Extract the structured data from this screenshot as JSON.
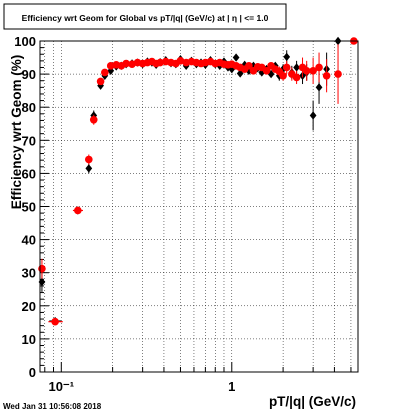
{
  "chart_data": {
    "type": "scatter",
    "title": "Efficiency wrt Geom for Global vs pT/|q| (GeV/c) at | η | <= 1.0",
    "xlabel": "pT/|q| (GeV/c)",
    "ylabel": "Efficiency wrt Geom (%)",
    "x_scale": "log",
    "xlim": [
      0.075,
      5.5
    ],
    "ylim": [
      0,
      100
    ],
    "x_major_ticks": [
      {
        "value": 0.1,
        "label": "10⁻¹"
      },
      {
        "value": 1,
        "label": "1"
      }
    ],
    "x_minor_ticks": [
      0.08,
      0.09,
      0.2,
      0.3,
      0.4,
      0.5,
      0.6,
      0.7,
      0.8,
      0.9,
      2,
      3,
      4,
      5
    ],
    "y_ticks": [
      0,
      10,
      20,
      30,
      40,
      50,
      60,
      70,
      80,
      90,
      100
    ],
    "grid": true,
    "colors": {
      "series_black": "#000000",
      "series_red": "#ff0000"
    },
    "series": [
      {
        "color": "#000000",
        "marker": "diamond",
        "points": [
          {
            "x": 0.077,
            "y": 27.2,
            "yerr": 3.0
          },
          {
            "x": 0.092,
            "y": 15.4,
            "yerr": 0.8,
            "xerr": [
              0.085,
              0.1
            ]
          },
          {
            "x": 0.125,
            "y": 48.8,
            "yerr": 0.8,
            "xerr": [
              0.12,
              0.13
            ]
          },
          {
            "x": 0.145,
            "y": 61.5,
            "yerr": 1.5
          },
          {
            "x": 0.155,
            "y": 77.5,
            "yerr": 1.5
          },
          {
            "x": 0.17,
            "y": 86.5,
            "yerr": 1.0
          },
          {
            "x": 0.18,
            "y": 89.5,
            "yerr": 1.0
          },
          {
            "x": 0.195,
            "y": 91.0
          },
          {
            "x": 0.21,
            "y": 92.3
          },
          {
            "x": 0.225,
            "y": 92.5
          },
          {
            "x": 0.24,
            "y": 93.0
          },
          {
            "x": 0.26,
            "y": 93.2
          },
          {
            "x": 0.28,
            "y": 93.5
          },
          {
            "x": 0.3,
            "y": 93.0
          },
          {
            "x": 0.32,
            "y": 93.8
          },
          {
            "x": 0.34,
            "y": 93.5
          },
          {
            "x": 0.36,
            "y": 92.8
          },
          {
            "x": 0.38,
            "y": 93.6
          },
          {
            "x": 0.41,
            "y": 94.2
          },
          {
            "x": 0.44,
            "y": 93.3
          },
          {
            "x": 0.47,
            "y": 93.0
          },
          {
            "x": 0.5,
            "y": 94.5
          },
          {
            "x": 0.54,
            "y": 92.5
          },
          {
            "x": 0.58,
            "y": 94.0
          },
          {
            "x": 0.62,
            "y": 93.0
          },
          {
            "x": 0.66,
            "y": 93.5
          },
          {
            "x": 0.7,
            "y": 92.8
          },
          {
            "x": 0.75,
            "y": 94.2
          },
          {
            "x": 0.8,
            "y": 93.0
          },
          {
            "x": 0.85,
            "y": 92.5
          },
          {
            "x": 0.9,
            "y": 93.8
          },
          {
            "x": 0.95,
            "y": 92.0
          },
          {
            "x": 1.0,
            "y": 91.5
          },
          {
            "x": 1.06,
            "y": 95.0
          },
          {
            "x": 1.12,
            "y": 90.2
          },
          {
            "x": 1.19,
            "y": 92.8
          },
          {
            "x": 1.26,
            "y": 91.0
          },
          {
            "x": 1.34,
            "y": 92.5
          },
          {
            "x": 1.42,
            "y": 91.8
          },
          {
            "x": 1.5,
            "y": 90.5
          },
          {
            "x": 1.6,
            "y": 91.5
          },
          {
            "x": 1.7,
            "y": 90.0
          },
          {
            "x": 1.8,
            "y": 92.5
          },
          {
            "x": 1.9,
            "y": 89.5,
            "yerr": 1.5
          },
          {
            "x": 2.0,
            "y": 91.5,
            "yerr": 1.5
          },
          {
            "x": 2.1,
            "y": 95.2,
            "yerr": 2.0
          },
          {
            "x": 2.25,
            "y": 90.5,
            "yerr": 2.0
          },
          {
            "x": 2.4,
            "y": 92.0,
            "yerr": 2.0
          },
          {
            "x": 2.6,
            "y": 89.5,
            "yerr": 2.5
          },
          {
            "x": 2.75,
            "y": 90.5,
            "yerr": 2.5
          },
          {
            "x": 3.0,
            "y": 77.5,
            "yerr": 4.5
          },
          {
            "x": 3.25,
            "y": 86.0,
            "yerr": 5.0
          },
          {
            "x": 3.6,
            "y": 91.5,
            "yerr": 5.0
          },
          {
            "x": 4.2,
            "y": 100.0,
            "yerr": 2.0
          }
        ]
      },
      {
        "color": "#ff0000",
        "marker": "circle",
        "points": [
          {
            "x": 0.077,
            "y": 31.2,
            "yerr": 3.0
          },
          {
            "x": 0.092,
            "y": 15.2,
            "yerr": 0.8,
            "xerr": [
              0.084,
              0.102
            ]
          },
          {
            "x": 0.125,
            "y": 48.8,
            "yerr": 0.8,
            "xerr": [
              0.117,
              0.134
            ]
          },
          {
            "x": 0.145,
            "y": 64.2,
            "yerr": 1.5
          },
          {
            "x": 0.155,
            "y": 76.2,
            "yerr": 1.5
          },
          {
            "x": 0.17,
            "y": 87.8,
            "yerr": 1.0
          },
          {
            "x": 0.18,
            "y": 90.5,
            "yerr": 1.0
          },
          {
            "x": 0.195,
            "y": 92.5
          },
          {
            "x": 0.21,
            "y": 92.8
          },
          {
            "x": 0.225,
            "y": 92.5
          },
          {
            "x": 0.24,
            "y": 93.2
          },
          {
            "x": 0.26,
            "y": 93.0
          },
          {
            "x": 0.28,
            "y": 93.5
          },
          {
            "x": 0.3,
            "y": 93.2
          },
          {
            "x": 0.32,
            "y": 93.5
          },
          {
            "x": 0.34,
            "y": 93.8
          },
          {
            "x": 0.36,
            "y": 93.2
          },
          {
            "x": 0.38,
            "y": 93.5
          },
          {
            "x": 0.41,
            "y": 93.8
          },
          {
            "x": 0.44,
            "y": 93.5
          },
          {
            "x": 0.47,
            "y": 93.2
          },
          {
            "x": 0.5,
            "y": 94.0
          },
          {
            "x": 0.54,
            "y": 93.5
          },
          {
            "x": 0.58,
            "y": 93.8
          },
          {
            "x": 0.62,
            "y": 93.5
          },
          {
            "x": 0.66,
            "y": 93.2
          },
          {
            "x": 0.7,
            "y": 93.5
          },
          {
            "x": 0.75,
            "y": 93.8
          },
          {
            "x": 0.8,
            "y": 93.2
          },
          {
            "x": 0.85,
            "y": 93.5
          },
          {
            "x": 0.9,
            "y": 93.0
          },
          {
            "x": 0.95,
            "y": 92.8
          },
          {
            "x": 1.0,
            "y": 93.0
          },
          {
            "x": 1.06,
            "y": 92.5
          },
          {
            "x": 1.12,
            "y": 92.0
          },
          {
            "x": 1.19,
            "y": 91.5
          },
          {
            "x": 1.26,
            "y": 92.5
          },
          {
            "x": 1.34,
            "y": 91.0
          },
          {
            "x": 1.42,
            "y": 92.2
          },
          {
            "x": 1.5,
            "y": 92.0
          },
          {
            "x": 1.6,
            "y": 91.0
          },
          {
            "x": 1.7,
            "y": 92.5
          },
          {
            "x": 1.8,
            "y": 91.5
          },
          {
            "x": 1.9,
            "y": 90.8,
            "yerr": 1.5
          },
          {
            "x": 2.0,
            "y": 89.5,
            "yerr": 1.5
          },
          {
            "x": 2.1,
            "y": 92.0,
            "yerr": 2.0
          },
          {
            "x": 2.25,
            "y": 90.0,
            "yerr": 2.0
          },
          {
            "x": 2.4,
            "y": 89.0,
            "yerr": 2.0
          },
          {
            "x": 2.6,
            "y": 92.0,
            "yerr": 3.0
          },
          {
            "x": 2.75,
            "y": 91.0,
            "yerr": 3.0
          },
          {
            "x": 3.0,
            "y": 91.0,
            "yerr": 4.0
          },
          {
            "x": 3.25,
            "y": 92.0,
            "yerr": 4.5
          },
          {
            "x": 3.6,
            "y": 89.5,
            "yerr": 5.0
          },
          {
            "x": 4.2,
            "y": 90.0,
            "yerr": 9.0
          },
          {
            "x": 5.2,
            "y": 100.0,
            "yerr": 1.0
          }
        ]
      }
    ]
  },
  "footer": {
    "timestamp": "Wed Jan 31 10:56:08 2018"
  }
}
